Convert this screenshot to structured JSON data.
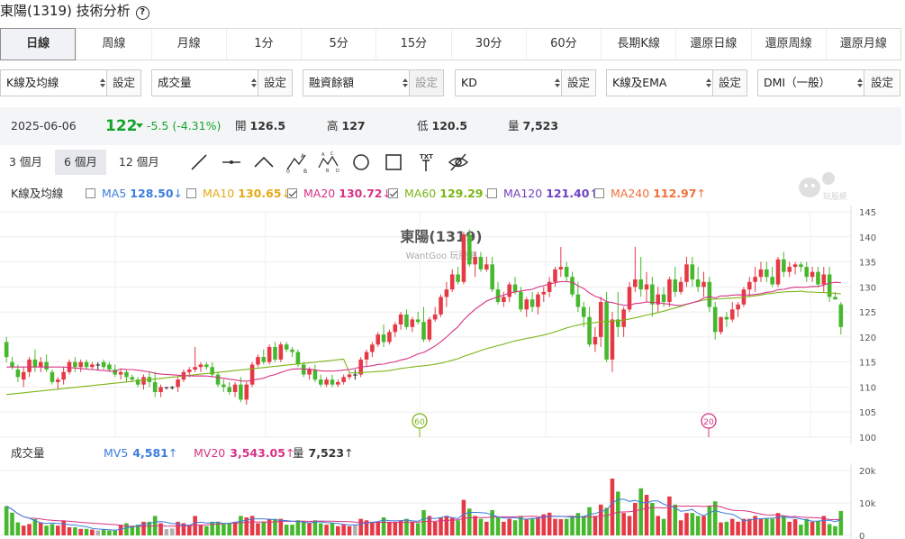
{
  "page": {
    "title": "東陽(1319) 技術分析",
    "help_icon": "?"
  },
  "period_tabs": [
    "日線",
    "周線",
    "月線",
    "1分",
    "5分",
    "15分",
    "30分",
    "60分",
    "長期K線",
    "還原日線",
    "還原周線",
    "還原月線"
  ],
  "selected_tab": "日線",
  "indicator_selects": [
    {
      "value": "K線及均線",
      "button": "設定",
      "disabled": false
    },
    {
      "value": "成交量",
      "button": "設定",
      "disabled": false
    },
    {
      "value": "融資餘額",
      "button": "設定",
      "disabled": true
    },
    {
      "value": "KD",
      "button": "設定",
      "disabled": false
    },
    {
      "value": "K線及EMA",
      "button": "設定",
      "disabled": false
    },
    {
      "value": "DMI（一般）",
      "button": "設定",
      "disabled": false
    }
  ],
  "quote": {
    "date": "2025-06-06",
    "price": "122",
    "change": "-5.5 (-4.31%)",
    "open_label": "開",
    "open": "126.5",
    "high_label": "高",
    "high": "127",
    "low_label": "低",
    "low": "120.5",
    "volume_label": "量",
    "volume": "7,523"
  },
  "range_buttons": [
    "3 個月",
    "6 個月",
    "12 個月"
  ],
  "selected_range": "6 個月",
  "tools": [
    "line-tool-icon",
    "horizontal-line-icon",
    "polyline-icon",
    "abc-pattern-icon",
    "abcd-pattern-icon",
    "circle-tool-icon",
    "rectangle-tool-icon",
    "text-tool-icon",
    "hide-drawings-icon"
  ],
  "ma_legend": {
    "label": "K線及均線",
    "items": [
      {
        "name": "MA5",
        "value": "128.50",
        "arrow": "↓",
        "color": "#3b7ddd",
        "checked": false
      },
      {
        "name": "MA10",
        "value": "130.65",
        "arrow": "↓",
        "color": "#e6a817",
        "checked": false
      },
      {
        "name": "MA20",
        "value": "130.72",
        "arrow": "↓",
        "color": "#d63384",
        "checked": true
      },
      {
        "name": "MA60",
        "value": "129.29",
        "arrow": "↓",
        "color": "#7cb518",
        "checked": true
      },
      {
        "name": "MA120",
        "value": "121.40",
        "arrow": "↑",
        "color": "#6f42c1",
        "checked": false
      },
      {
        "name": "MA240",
        "value": "112.97",
        "arrow": "↑",
        "color": "#f0703a",
        "checked": false
      }
    ]
  },
  "watermark": {
    "title": "東陽(1319)",
    "subtitle": "WantGoo 玩股網",
    "logo_text": "玩股網"
  },
  "markers": [
    "60",
    "20"
  ],
  "volume_legend": {
    "label": "成交量",
    "items": [
      {
        "name": "MV5",
        "value": "4,581",
        "arrow": "↑",
        "color": "#3b7ddd"
      },
      {
        "name": "MV20",
        "value": "3,543.05",
        "arrow": "↑",
        "color": "#d63384"
      },
      {
        "name": "量",
        "value": "7,523",
        "arrow": "↑",
        "color": "#333"
      }
    ]
  },
  "colors": {
    "up": "#e63946",
    "down": "#46b82e",
    "flat": "#b0b0b0",
    "ma20": "#d63384",
    "ma60": "#7cb518",
    "mv5": "#3b7ddd",
    "mv20": "#d63384"
  },
  "chart_data": {
    "type": "candlestick",
    "price_axis": {
      "ticks": [
        145,
        140,
        135,
        130,
        125,
        120,
        115,
        110,
        105,
        100
      ],
      "ylim": [
        100,
        145
      ]
    },
    "volume_axis": {
      "ticks": [
        "20k",
        "10k",
        "0"
      ],
      "ylim": [
        0,
        20000
      ]
    },
    "last": {
      "date": "2025-06-06",
      "open": 126.5,
      "high": 127,
      "low": 120.5,
      "close": 122,
      "volume": 7523
    },
    "candles": [
      [
        119,
        120,
        115,
        116
      ],
      [
        115,
        116,
        113.5,
        114
      ],
      [
        113.5,
        114.5,
        111,
        112
      ],
      [
        111.5,
        114,
        110,
        113
      ],
      [
        113,
        116,
        112,
        115.5
      ],
      [
        115.5,
        117.5,
        113,
        114
      ],
      [
        114,
        116,
        113,
        115
      ],
      [
        115,
        116.5,
        113,
        113.5
      ],
      [
        113,
        113.5,
        110.5,
        111
      ],
      [
        111,
        112,
        109.5,
        111.5
      ],
      [
        111.5,
        114,
        110.5,
        113
      ],
      [
        113,
        115.5,
        112.5,
        115
      ],
      [
        115,
        116,
        113,
        114
      ],
      [
        114,
        115.5,
        113,
        115
      ],
      [
        115,
        115.5,
        113.5,
        114
      ],
      [
        114,
        115,
        113.5,
        114.5
      ],
      [
        114.5,
        115,
        113.5,
        114.5
      ],
      [
        115,
        115.5,
        113.5,
        114
      ],
      [
        114.5,
        115,
        113,
        113.5
      ],
      [
        113.5,
        114.5,
        112,
        112.5
      ],
      [
        112.5,
        113.5,
        111.5,
        113
      ],
      [
        113,
        113.5,
        111,
        112
      ],
      [
        112,
        112.5,
        111,
        111.5
      ],
      [
        111.5,
        112,
        110,
        110.5
      ],
      [
        110.5,
        112.5,
        109.5,
        112
      ],
      [
        112,
        113,
        110,
        111
      ],
      [
        111,
        113,
        108,
        109
      ],
      [
        109,
        110.5,
        108,
        110
      ],
      [
        110,
        110,
        109.5,
        110
      ],
      [
        110,
        110.2,
        109.5,
        110
      ],
      [
        110,
        112,
        109,
        111.5
      ],
      [
        111.5,
        113.5,
        111,
        113
      ],
      [
        113,
        114,
        112,
        113.5
      ],
      [
        113.5,
        118,
        113,
        114
      ],
      [
        114,
        115,
        113,
        114.5
      ],
      [
        114.5,
        115,
        113.5,
        114
      ],
      [
        114,
        115,
        112,
        112.5
      ],
      [
        112.5,
        113,
        110,
        110.5
      ],
      [
        110.5,
        111.5,
        109,
        110
      ],
      [
        110,
        111,
        108.5,
        109
      ],
      [
        109,
        111,
        108,
        110.5
      ],
      [
        110.5,
        112,
        107,
        107.5
      ],
      [
        107.5,
        111,
        106.5,
        110.5
      ],
      [
        110.5,
        115,
        110,
        114.5
      ],
      [
        114.5,
        116.5,
        114,
        116
      ],
      [
        116,
        117.5,
        114.5,
        115
      ],
      [
        115,
        118.5,
        114.5,
        118
      ],
      [
        118,
        119,
        115,
        115.5
      ],
      [
        115.5,
        119,
        115,
        118.5
      ],
      [
        118.5,
        119,
        117,
        117.5
      ],
      [
        117.5,
        118,
        116,
        117
      ],
      [
        117,
        117.5,
        114,
        114.5
      ],
      [
        114.5,
        115,
        112,
        112.5
      ],
      [
        112.5,
        114,
        111.5,
        113.5
      ],
      [
        113.5,
        114.5,
        111,
        111.5
      ],
      [
        111.5,
        112.5,
        110,
        110.5
      ],
      [
        110.5,
        112,
        110,
        111.5
      ],
      [
        111.5,
        112.5,
        110,
        110.5
      ],
      [
        110.5,
        111.5,
        110,
        111
      ],
      [
        111,
        112.5,
        110.5,
        112
      ],
      [
        112,
        113,
        111.5,
        112.5
      ],
      [
        112.5,
        113.5,
        111.5,
        112.5
      ],
      [
        112.5,
        116,
        112,
        115.5
      ],
      [
        115.5,
        117.5,
        114,
        117
      ],
      [
        117,
        119,
        116,
        118.5
      ],
      [
        118.5,
        121,
        118,
        120.5
      ],
      [
        120.5,
        122.5,
        118,
        119
      ],
      [
        119,
        121.5,
        118.5,
        121
      ],
      [
        121,
        123,
        120,
        122.5
      ],
      [
        122.5,
        125,
        121.5,
        124.5
      ],
      [
        124.5,
        125.5,
        121.5,
        122
      ],
      [
        122,
        124,
        121,
        123.5
      ],
      [
        123.5,
        125,
        122.5,
        123
      ],
      [
        123,
        126,
        119,
        119.5
      ],
      [
        119.5,
        124,
        119,
        123.5
      ],
      [
        123.5,
        126,
        123,
        124.5
      ],
      [
        124.5,
        128.5,
        124,
        128
      ],
      [
        128,
        131,
        126,
        129.5
      ],
      [
        129.5,
        133.5,
        129,
        132.5
      ],
      [
        132.5,
        134,
        130.5,
        131
      ],
      [
        131,
        141,
        130.5,
        140.5
      ],
      [
        140.5,
        141.5,
        134,
        134.5
      ],
      [
        134.5,
        137,
        132,
        136
      ],
      [
        136,
        137,
        133,
        133.5
      ],
      [
        133.5,
        136,
        133,
        134.5
      ],
      [
        134.5,
        136,
        129,
        129.5
      ],
      [
        129.5,
        131,
        126.5,
        127
      ],
      [
        127,
        129,
        126,
        128
      ],
      [
        128,
        131,
        127,
        130.5
      ],
      [
        130.5,
        132,
        128.5,
        129
      ]
    ],
    "volumes": [
      9000,
      7000,
      4000,
      3000,
      3500,
      5000,
      4000,
      3000,
      3500,
      3000,
      4500,
      2500,
      2500,
      2000,
      2000,
      1800,
      1500,
      1800,
      1500,
      1500
    ]
  }
}
